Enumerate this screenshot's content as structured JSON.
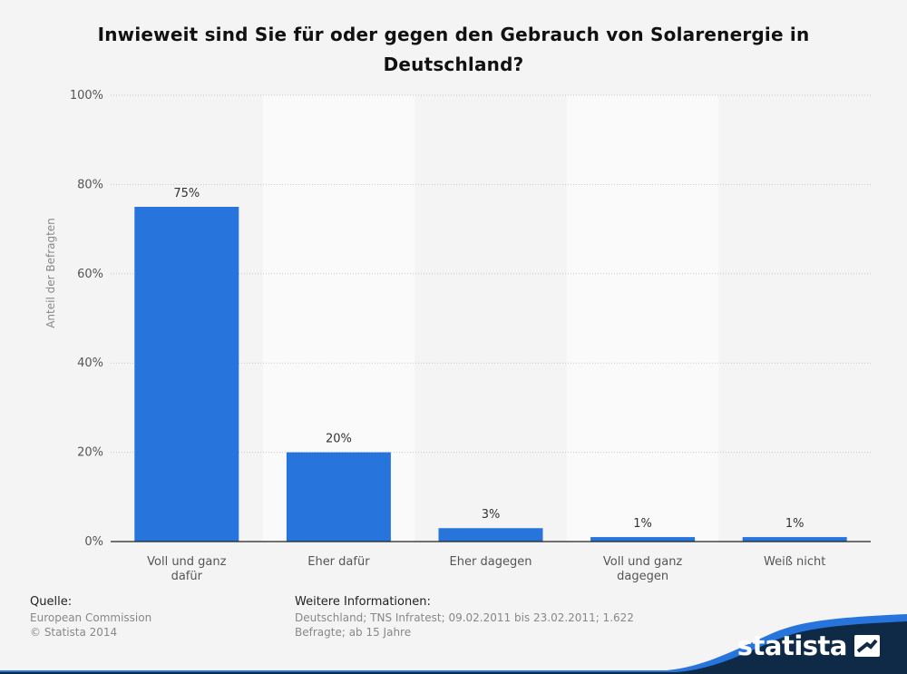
{
  "chart_data": {
    "type": "bar",
    "title": "Inwieweit sind Sie für oder gegen den Gebrauch von Solarenergie in Deutschland?",
    "categories": [
      [
        "Voll und ganz",
        "dafür"
      ],
      [
        "Eher dafür"
      ],
      [
        "Eher dagegen"
      ],
      [
        "Voll und ganz",
        "dagegen"
      ],
      [
        "Weiß nicht"
      ]
    ],
    "values": [
      75,
      20,
      3,
      1,
      1
    ],
    "value_labels": [
      "75%",
      "20%",
      "3%",
      "1%",
      "1%"
    ],
    "ylabel": "Anteil der Befragten",
    "xlabel": "",
    "ylim": [
      0,
      100
    ],
    "yticks": [
      0,
      20,
      40,
      60,
      80,
      100
    ],
    "ytick_labels": [
      "0%",
      "20%",
      "40%",
      "60%",
      "80%",
      "100%"
    ],
    "grid": true,
    "bar_color": "#2874dd"
  },
  "footer": {
    "source_heading": "Quelle:",
    "source_lines": [
      "European Commission",
      "© Statista 2014"
    ],
    "info_heading": "Weitere Informationen:",
    "info_lines": [
      "Deutschland; TNS Infratest; 09.02.2011 bis 23.02.2011; 1.622",
      "Befragte; ab 15 Jahre"
    ]
  },
  "brand": {
    "name": "statista",
    "band_color": "#0e2a47",
    "accent_color": "#2874dd"
  }
}
